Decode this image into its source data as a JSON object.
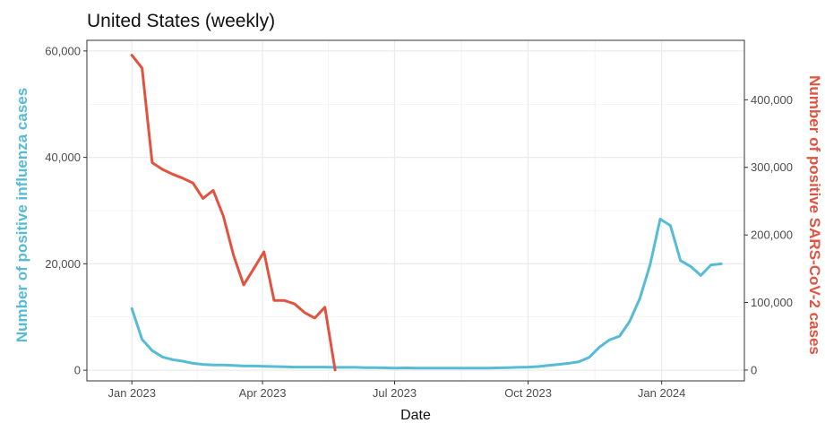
{
  "chart_data": {
    "type": "line",
    "title": "United States (weekly)",
    "xlabel": "Date",
    "ylabel_left": "Number of positive influenza cases",
    "ylabel_right": "Number of positive SARS-CoV-2 cases",
    "x_range": [
      "2022-12-01",
      "2024-02-27"
    ],
    "ylim_left": [
      -2000,
      62000
    ],
    "ylim_right": [
      -16000,
      488000
    ],
    "x_ticks": [
      {
        "date": "2023-01-01",
        "label": "Jan 2023"
      },
      {
        "date": "2023-04-01",
        "label": "Apr 2023"
      },
      {
        "date": "2023-07-01",
        "label": "Jul 2023"
      },
      {
        "date": "2023-10-01",
        "label": "Oct 2023"
      },
      {
        "date": "2024-01-01",
        "label": "Jan 2024"
      }
    ],
    "y_ticks_left": [
      {
        "value": 0,
        "label": "0"
      },
      {
        "value": 20000,
        "label": "20,000"
      },
      {
        "value": 40000,
        "label": "40,000"
      },
      {
        "value": 60000,
        "label": "60,000"
      }
    ],
    "y_ticks_right": [
      {
        "value": 0,
        "label": "0"
      },
      {
        "value": 100000,
        "label": "100,000"
      },
      {
        "value": 200000,
        "label": "200,000"
      },
      {
        "value": 300000,
        "label": "300,000"
      },
      {
        "value": 400000,
        "label": "400,000"
      }
    ],
    "grid": true,
    "series": [
      {
        "axis": "left",
        "color": "#56bcd6",
        "x": [
          "2023-01-01",
          "2023-01-08",
          "2023-01-15",
          "2023-01-22",
          "2023-01-29",
          "2023-02-05",
          "2023-02-12",
          "2023-02-19",
          "2023-02-26",
          "2023-03-05",
          "2023-03-12",
          "2023-03-19",
          "2023-03-26",
          "2023-04-02",
          "2023-04-09",
          "2023-04-16",
          "2023-04-23",
          "2023-04-30",
          "2023-05-07",
          "2023-05-14",
          "2023-05-21",
          "2023-05-28",
          "2023-06-04",
          "2023-06-11",
          "2023-06-18",
          "2023-06-25",
          "2023-07-02",
          "2023-07-09",
          "2023-07-16",
          "2023-07-23",
          "2023-07-30",
          "2023-08-06",
          "2023-08-13",
          "2023-08-20",
          "2023-08-27",
          "2023-09-03",
          "2023-09-10",
          "2023-09-17",
          "2023-09-24",
          "2023-10-01",
          "2023-10-08",
          "2023-10-15",
          "2023-10-22",
          "2023-10-29",
          "2023-11-05",
          "2023-11-12",
          "2023-11-19",
          "2023-11-26",
          "2023-12-03",
          "2023-12-10",
          "2023-12-17",
          "2023-12-24",
          "2023-12-31",
          "2024-01-07",
          "2024-01-14",
          "2024-01-21",
          "2024-01-28",
          "2024-02-04",
          "2024-02-11"
        ],
        "y": [
          11600,
          5800,
          3700,
          2500,
          2000,
          1700,
          1300,
          1100,
          1000,
          1000,
          900,
          800,
          800,
          750,
          700,
          650,
          600,
          600,
          600,
          600,
          550,
          550,
          550,
          500,
          500,
          450,
          400,
          450,
          400,
          400,
          400,
          400,
          400,
          400,
          400,
          400,
          450,
          500,
          550,
          600,
          700,
          900,
          1100,
          1300,
          1600,
          2400,
          4300,
          5700,
          6400,
          9200,
          13500,
          19800,
          28400,
          27200,
          20600,
          19500,
          17800,
          19800,
          20000
        ]
      },
      {
        "axis": "right",
        "color": "#e2533f",
        "x": [
          "2023-01-01",
          "2023-01-08",
          "2023-01-15",
          "2023-01-22",
          "2023-01-29",
          "2023-02-05",
          "2023-02-12",
          "2023-02-19",
          "2023-02-26",
          "2023-03-05",
          "2023-03-12",
          "2023-03-19",
          "2023-03-26",
          "2023-04-02",
          "2023-04-09",
          "2023-04-16",
          "2023-04-23",
          "2023-04-30",
          "2023-05-07",
          "2023-05-14",
          "2023-05-21"
        ],
        "y": [
          466000,
          447000,
          307000,
          297000,
          290000,
          284000,
          277000,
          254000,
          266000,
          228000,
          170000,
          126000,
          150000,
          175000,
          103000,
          103000,
          98000,
          85000,
          77000,
          93000,
          0
        ]
      }
    ]
  }
}
